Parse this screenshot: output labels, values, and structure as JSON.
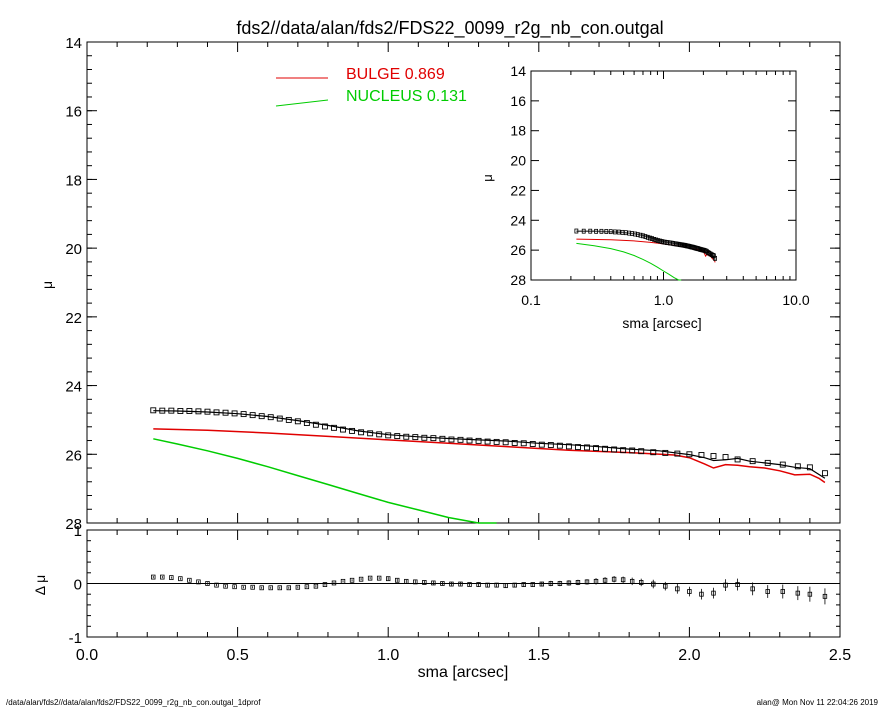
{
  "title": "fds2//data/alan/fds2/FDS22_0099_r2g_nb_con.outgal",
  "footer_left": "/data/alan/fds2//data/alan/fds2/FDS22_0099_r2g_nb_con.outgal_1dprof",
  "footer_right": "alan@  Mon Nov 11 22:04:26 2019",
  "colors": {
    "bulge": "#e00000",
    "nucleus": "#00cc00",
    "data": "#000000"
  },
  "chart_data": [
    {
      "type": "scatter",
      "name": "main-profile",
      "ylabel": "μ",
      "xlim": [
        0,
        2.5
      ],
      "ylim": [
        28,
        14
      ],
      "y_inverted": true,
      "x_ticks": [
        0.0,
        0.5,
        1.0,
        1.5,
        2.0,
        2.5
      ],
      "x_tick_labels": [
        "0.0",
        "0.5",
        "1.0",
        "1.5",
        "2.0",
        "2.5"
      ],
      "y_ticks": [
        14,
        16,
        18,
        20,
        22,
        24,
        26,
        28
      ],
      "y_tick_labels": [
        "14",
        "16",
        "18",
        "20",
        "22",
        "24",
        "26",
        "28"
      ],
      "legend": [
        {
          "label": "BULGE",
          "value": "0.869",
          "color": "#e00000"
        },
        {
          "label": "NUCLEUS",
          "value": "0.131",
          "color": "#00cc00"
        }
      ],
      "legend_placement": "top-center",
      "data_points": {
        "x": [
          0.22,
          0.25,
          0.28,
          0.31,
          0.34,
          0.37,
          0.4,
          0.43,
          0.46,
          0.49,
          0.52,
          0.55,
          0.58,
          0.61,
          0.64,
          0.67,
          0.7,
          0.73,
          0.76,
          0.79,
          0.82,
          0.85,
          0.88,
          0.91,
          0.94,
          0.97,
          1.0,
          1.03,
          1.06,
          1.09,
          1.12,
          1.15,
          1.18,
          1.21,
          1.24,
          1.27,
          1.3,
          1.33,
          1.36,
          1.39,
          1.42,
          1.45,
          1.48,
          1.51,
          1.54,
          1.57,
          1.6,
          1.63,
          1.66,
          1.69,
          1.72,
          1.75,
          1.78,
          1.81,
          1.84,
          1.88,
          1.92,
          1.96,
          2.0,
          2.04,
          2.08,
          2.12,
          2.16,
          2.21,
          2.26,
          2.31,
          2.36,
          2.4,
          2.45
        ],
        "y": [
          24.72,
          24.73,
          24.73,
          24.74,
          24.74,
          24.75,
          24.76,
          24.78,
          24.79,
          24.81,
          24.83,
          24.86,
          24.89,
          24.92,
          24.96,
          25.0,
          25.04,
          25.09,
          25.14,
          25.19,
          25.23,
          25.28,
          25.32,
          25.36,
          25.39,
          25.42,
          25.45,
          25.47,
          25.49,
          25.5,
          25.52,
          25.53,
          25.55,
          25.57,
          25.58,
          25.6,
          25.61,
          25.63,
          25.64,
          25.65,
          25.67,
          25.68,
          25.7,
          25.72,
          25.73,
          25.75,
          25.77,
          25.79,
          25.8,
          25.82,
          25.84,
          25.86,
          25.88,
          25.89,
          25.91,
          25.94,
          25.96,
          25.98,
          26.0,
          26.02,
          26.05,
          26.08,
          26.15,
          26.2,
          26.25,
          26.3,
          26.35,
          26.38,
          26.55
        ]
      },
      "model_line": {
        "x": [
          0.22,
          0.3,
          0.4,
          0.5,
          0.6,
          0.7,
          0.8,
          0.9,
          1.0,
          1.1,
          1.2,
          1.3,
          1.4,
          1.5,
          1.6,
          1.7,
          1.8,
          1.9,
          2.0,
          2.05,
          2.08,
          2.12,
          2.16,
          2.2,
          2.25,
          2.3,
          2.35,
          2.4,
          2.45
        ],
        "y": [
          24.73,
          24.74,
          24.77,
          24.82,
          24.9,
          25.02,
          25.16,
          25.32,
          25.43,
          25.49,
          25.54,
          25.58,
          25.62,
          25.68,
          25.72,
          25.78,
          25.85,
          25.9,
          26.01,
          26.1,
          26.18,
          26.16,
          26.12,
          26.2,
          26.25,
          26.3,
          26.38,
          26.42,
          26.7
        ]
      },
      "bulge_line": {
        "x": [
          0.22,
          0.4,
          0.6,
          0.8,
          1.0,
          1.2,
          1.4,
          1.6,
          1.8,
          1.95,
          2.0,
          2.05,
          2.08,
          2.12,
          2.16,
          2.2,
          2.25,
          2.3,
          2.35,
          2.4,
          2.43,
          2.45
        ],
        "y": [
          25.26,
          25.3,
          25.38,
          25.48,
          25.58,
          25.68,
          25.78,
          25.88,
          25.95,
          26.02,
          26.1,
          26.28,
          26.4,
          26.3,
          26.32,
          26.36,
          26.4,
          26.48,
          26.6,
          26.58,
          26.7,
          26.82
        ]
      },
      "nucleus_line": {
        "x": [
          0.22,
          0.3,
          0.4,
          0.5,
          0.6,
          0.7,
          0.8,
          0.9,
          1.0,
          1.1,
          1.2,
          1.3,
          1.36
        ],
        "y": [
          25.55,
          25.7,
          25.9,
          26.12,
          26.36,
          26.62,
          26.88,
          27.14,
          27.4,
          27.62,
          27.84,
          28.0,
          28.0
        ]
      }
    },
    {
      "type": "scatter",
      "name": "residuals",
      "ylabel": "Δ μ",
      "xlabel": "sma [arcsec]",
      "xlim": [
        0,
        2.5
      ],
      "ylim": [
        -1,
        1
      ],
      "y_ticks": [
        1,
        0,
        -1
      ],
      "y_tick_labels": [
        "1",
        "0",
        "-1"
      ],
      "x": [
        0.22,
        0.25,
        0.28,
        0.31,
        0.34,
        0.37,
        0.4,
        0.43,
        0.46,
        0.49,
        0.52,
        0.55,
        0.58,
        0.61,
        0.64,
        0.67,
        0.7,
        0.73,
        0.76,
        0.79,
        0.82,
        0.85,
        0.88,
        0.91,
        0.94,
        0.97,
        1.0,
        1.03,
        1.06,
        1.09,
        1.12,
        1.15,
        1.18,
        1.21,
        1.24,
        1.27,
        1.3,
        1.33,
        1.36,
        1.39,
        1.42,
        1.45,
        1.48,
        1.51,
        1.54,
        1.57,
        1.6,
        1.63,
        1.66,
        1.69,
        1.72,
        1.75,
        1.78,
        1.81,
        1.84,
        1.88,
        1.92,
        1.96,
        2.0,
        2.04,
        2.08,
        2.12,
        2.16,
        2.21,
        2.26,
        2.31,
        2.36,
        2.4,
        2.45
      ],
      "y": [
        0.12,
        0.12,
        0.11,
        0.09,
        0.06,
        0.03,
        0.0,
        -0.03,
        -0.05,
        -0.06,
        -0.07,
        -0.07,
        -0.08,
        -0.08,
        -0.08,
        -0.08,
        -0.07,
        -0.06,
        -0.05,
        -0.02,
        0.01,
        0.04,
        0.06,
        0.08,
        0.1,
        0.1,
        0.09,
        0.06,
        0.04,
        0.03,
        0.02,
        0.01,
        0.0,
        -0.01,
        -0.01,
        -0.02,
        -0.02,
        -0.03,
        -0.03,
        -0.04,
        -0.03,
        -0.02,
        -0.02,
        -0.01,
        0.0,
        0.0,
        0.01,
        0.02,
        0.03,
        0.04,
        0.06,
        0.08,
        0.07,
        0.04,
        0.02,
        -0.01,
        -0.05,
        -0.1,
        -0.15,
        -0.2,
        -0.18,
        -0.03,
        -0.02,
        -0.1,
        -0.15,
        -0.15,
        -0.18,
        -0.2,
        -0.24
      ],
      "err": [
        0.02,
        0.02,
        0.02,
        0.02,
        0.02,
        0.02,
        0.02,
        0.02,
        0.02,
        0.02,
        0.02,
        0.02,
        0.02,
        0.02,
        0.02,
        0.02,
        0.02,
        0.02,
        0.02,
        0.02,
        0.02,
        0.02,
        0.02,
        0.02,
        0.02,
        0.02,
        0.03,
        0.03,
        0.03,
        0.03,
        0.03,
        0.03,
        0.03,
        0.03,
        0.03,
        0.03,
        0.04,
        0.04,
        0.04,
        0.04,
        0.04,
        0.04,
        0.04,
        0.04,
        0.05,
        0.05,
        0.05,
        0.05,
        0.05,
        0.06,
        0.06,
        0.06,
        0.06,
        0.07,
        0.07,
        0.08,
        0.08,
        0.09,
        0.09,
        0.1,
        0.1,
        0.11,
        0.11,
        0.12,
        0.12,
        0.13,
        0.13,
        0.14,
        0.15
      ]
    },
    {
      "type": "scatter",
      "name": "inset-log-profile",
      "xlabel": "sma [arcsec]",
      "ylabel": "μ",
      "x_scale": "log",
      "xlim": [
        0.1,
        10.0
      ],
      "ylim": [
        28,
        14
      ],
      "y_inverted": true,
      "x_tick_labels": [
        "0.1",
        "1.0",
        "10.0"
      ],
      "x_ticks": [
        0.1,
        1.0,
        10.0
      ],
      "y_ticks": [
        14,
        16,
        18,
        20,
        22,
        24,
        26,
        28
      ],
      "y_tick_labels": [
        "14",
        "16",
        "18",
        "20",
        "22",
        "24",
        "26",
        "28"
      ],
      "nucleus_line": {
        "x": [
          0.22,
          0.3,
          0.4,
          0.5,
          0.6,
          0.7,
          0.8,
          0.9,
          1.0,
          1.1,
          1.2,
          1.3,
          1.36
        ],
        "y": [
          25.55,
          25.7,
          25.9,
          26.12,
          26.36,
          26.62,
          26.88,
          27.14,
          27.4,
          27.62,
          27.84,
          28.0,
          28.0
        ]
      }
    }
  ]
}
